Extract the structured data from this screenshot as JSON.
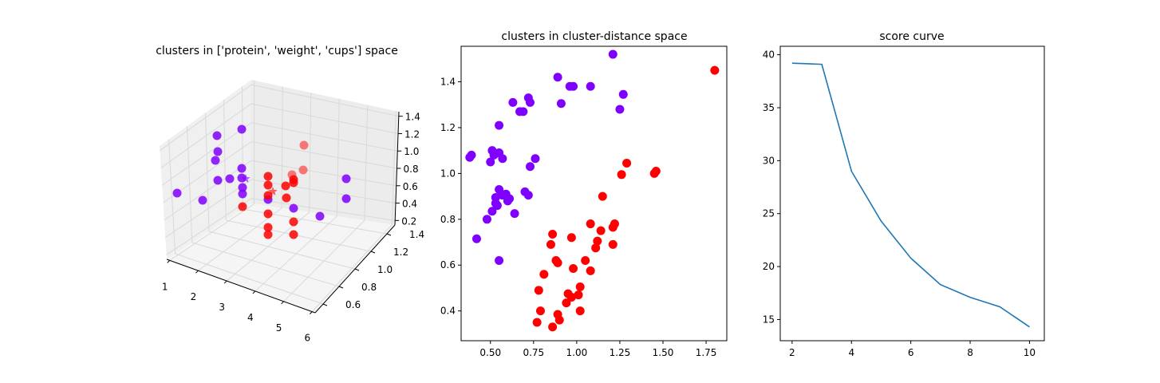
{
  "chart_data": [
    {
      "type": "scatter",
      "projection": "3d",
      "title": "clusters in ['protein', 'weight', 'cups'] space",
      "x_ticks": [
        "1",
        "2",
        "3",
        "4",
        "5",
        "6"
      ],
      "y_ticks": [
        "0.6",
        "0.8",
        "1.0",
        "1.2",
        "1.4"
      ],
      "z_ticks": [
        "0.2",
        "0.4",
        "0.6",
        "0.8",
        "1.0",
        "1.2",
        "1.4"
      ],
      "grid": true,
      "colors": {
        "cluster_0": "#8000ff",
        "cluster_1": "#ff0000",
        "pane": "#f2f2f2",
        "grid": "#d9d9d9"
      },
      "marker_note": "star markers are cluster centers",
      "points": [
        {
          "sx": 222,
          "sy": 242,
          "c": 0
        },
        {
          "sx": 254,
          "sy": 251,
          "c": 0
        },
        {
          "sx": 272,
          "sy": 170,
          "c": 0
        },
        {
          "sx": 303,
          "sy": 162,
          "c": 0
        },
        {
          "sx": 273,
          "sy": 190,
          "c": 0
        },
        {
          "sx": 270,
          "sy": 201,
          "c": 0
        },
        {
          "sx": 273,
          "sy": 226,
          "c": 0
        },
        {
          "sx": 288,
          "sy": 224,
          "c": 0
        },
        {
          "sx": 303,
          "sy": 211,
          "c": 0
        },
        {
          "sx": 303,
          "sy": 223,
          "c": 0
        },
        {
          "sx": 304,
          "sy": 235,
          "c": 0
        },
        {
          "sx": 304,
          "sy": 243,
          "c": 0
        },
        {
          "sx": 336,
          "sy": 250,
          "c": 0
        },
        {
          "sx": 368,
          "sy": 261,
          "c": 0
        },
        {
          "sx": 401,
          "sy": 271,
          "c": 0
        },
        {
          "sx": 434,
          "sy": 224,
          "c": 0
        },
        {
          "sx": 434,
          "sy": 249,
          "c": 0
        },
        {
          "sx": 381,
          "sy": 182,
          "c": 1
        },
        {
          "sx": 380,
          "sy": 213,
          "c": 1
        },
        {
          "sx": 366,
          "sy": 219,
          "c": 1
        },
        {
          "sx": 336,
          "sy": 221,
          "c": 1
        },
        {
          "sx": 368,
          "sy": 225,
          "c": 1
        },
        {
          "sx": 368,
          "sy": 229,
          "c": 1
        },
        {
          "sx": 336,
          "sy": 232,
          "c": 1
        },
        {
          "sx": 358,
          "sy": 233,
          "c": 1
        },
        {
          "sx": 336,
          "sy": 245,
          "c": 1
        },
        {
          "sx": 359,
          "sy": 248,
          "c": 1
        },
        {
          "sx": 304,
          "sy": 259,
          "c": 1
        },
        {
          "sx": 336,
          "sy": 268,
          "c": 1
        },
        {
          "sx": 368,
          "sy": 278,
          "c": 1
        },
        {
          "sx": 336,
          "sy": 285,
          "c": 1
        },
        {
          "sx": 336,
          "sy": 294,
          "c": 1
        },
        {
          "sx": 368,
          "sy": 294,
          "c": 1
        }
      ],
      "centers": [
        {
          "sx": 308,
          "sy": 224,
          "c": 0
        },
        {
          "sx": 342,
          "sy": 240,
          "c": 1
        }
      ]
    },
    {
      "type": "scatter",
      "title": "clusters in cluster-distance space",
      "xlim": [
        0.33,
        1.87
      ],
      "ylim": [
        0.27,
        1.555
      ],
      "xticks": [
        0.5,
        0.75,
        1.0,
        1.25,
        1.5,
        1.75
      ],
      "xtick_labels": [
        "0.50",
        "0.75",
        "1.00",
        "1.25",
        "1.50",
        "1.75"
      ],
      "yticks": [
        0.4,
        0.6,
        0.8,
        1.0,
        1.2,
        1.4
      ],
      "ytick_labels": [
        "0.4",
        "0.6",
        "0.8",
        "1.0",
        "1.2",
        "1.4"
      ],
      "colors": {
        "cluster_0": "#8000ff",
        "cluster_1": "#ff0000"
      },
      "series": [
        {
          "color": "#8000ff",
          "x": [
            1.21,
            0.89,
            0.96,
            0.98,
            1.08,
            0.72,
            0.63,
            0.73,
            0.91,
            0.67,
            0.69,
            1.27,
            1.25,
            0.55,
            0.38,
            0.39,
            0.51,
            0.52,
            0.55,
            0.57,
            0.5,
            0.73,
            0.76,
            0.55,
            0.59,
            0.53,
            0.57,
            0.61,
            0.7,
            0.72,
            0.53,
            0.6,
            0.54,
            0.51,
            0.64,
            0.48,
            0.42,
            0.55
          ],
          "y": [
            1.52,
            1.42,
            1.38,
            1.38,
            1.38,
            1.33,
            1.31,
            1.31,
            1.305,
            1.27,
            1.27,
            1.345,
            1.28,
            1.21,
            1.07,
            1.08,
            1.1,
            1.08,
            1.09,
            1.065,
            1.05,
            1.03,
            1.065,
            0.93,
            0.91,
            0.895,
            0.905,
            0.89,
            0.92,
            0.905,
            0.87,
            0.88,
            0.86,
            0.835,
            0.825,
            0.8,
            0.715,
            0.62
          ]
        },
        {
          "color": "#ff0000",
          "x": [
            1.8,
            1.29,
            1.46,
            1.45,
            1.26,
            1.15,
            1.08,
            1.22,
            1.21,
            1.14,
            1.12,
            0.86,
            0.97,
            0.85,
            1.11,
            1.21,
            0.88,
            0.89,
            1.05,
            0.98,
            1.08,
            0.81,
            1.02,
            0.78,
            0.95,
            1.01,
            0.97,
            0.94,
            0.79,
            1.02,
            0.89,
            0.9,
            0.77,
            0.86
          ],
          "y": [
            1.45,
            1.045,
            1.01,
            1.0,
            0.995,
            0.9,
            0.78,
            0.78,
            0.765,
            0.75,
            0.705,
            0.735,
            0.72,
            0.69,
            0.675,
            0.69,
            0.62,
            0.61,
            0.62,
            0.585,
            0.575,
            0.56,
            0.505,
            0.49,
            0.475,
            0.47,
            0.46,
            0.435,
            0.4,
            0.4,
            0.385,
            0.36,
            0.35,
            0.33
          ]
        }
      ]
    },
    {
      "type": "line",
      "title": "score curve",
      "x": [
        2,
        3,
        4,
        5,
        6,
        7,
        8,
        9,
        10
      ],
      "y": [
        39.2,
        39.1,
        29.0,
        24.3,
        20.8,
        18.3,
        17.1,
        16.2,
        14.3
      ],
      "xlim": [
        1.6,
        10.5
      ],
      "ylim": [
        13.0,
        40.8
      ],
      "xticks": [
        2,
        4,
        6,
        8,
        10
      ],
      "xtick_labels": [
        "2",
        "4",
        "6",
        "8",
        "10"
      ],
      "yticks": [
        15,
        20,
        25,
        30,
        35,
        40
      ],
      "ytick_labels": [
        "15",
        "20",
        "25",
        "30",
        "35",
        "40"
      ],
      "line_color": "#1f77b4"
    }
  ]
}
